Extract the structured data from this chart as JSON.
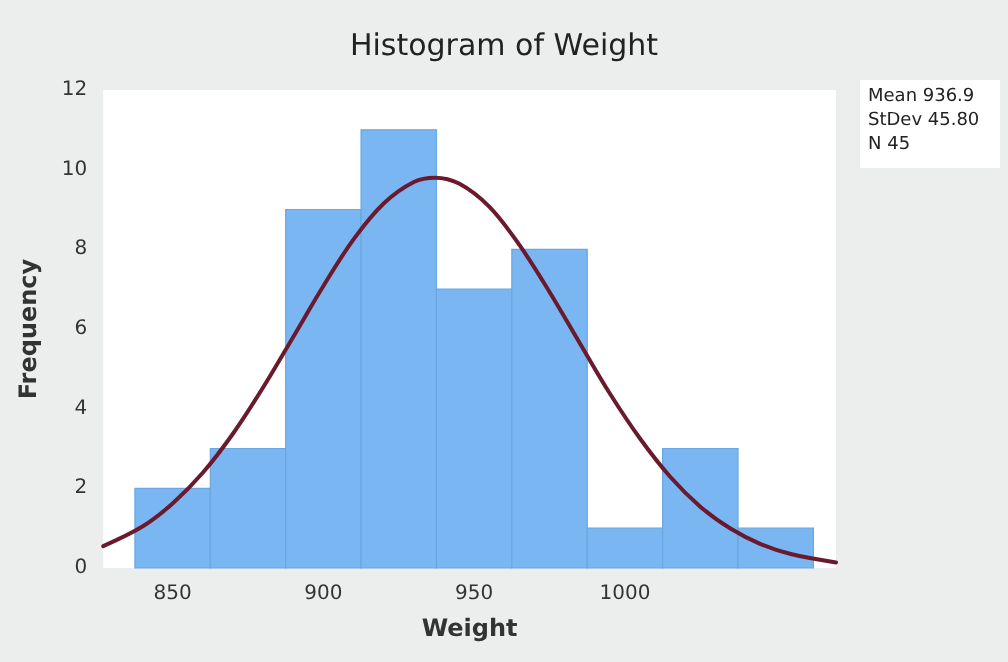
{
  "chart_data": {
    "type": "histogram",
    "title": "Histogram of Weight",
    "xlabel": "Weight",
    "ylabel": "Frequency",
    "bins": [
      837.5,
      862.5,
      887.5,
      912.5,
      937.5,
      962.5,
      987.5,
      1012.5,
      1037.5,
      1062.5
    ],
    "values": [
      2,
      3,
      9,
      11,
      7,
      8,
      1,
      3,
      1
    ],
    "color": "#7ab6f2",
    "series": [
      {
        "type": "line",
        "color": "#6b1a2e",
        "x": [
          827,
          840,
          850,
          860,
          870,
          880,
          890,
          900,
          910,
          920,
          930,
          937,
          945,
          955,
          965,
          975,
          985,
          995,
          1005,
          1015,
          1025,
          1035,
          1045,
          1055,
          1070
        ],
        "values": [
          0.55,
          1.04,
          1.62,
          2.39,
          3.37,
          4.53,
          5.8,
          7.08,
          8.25,
          9.15,
          9.69,
          9.8,
          9.65,
          9.07,
          8.11,
          6.93,
          5.65,
          4.38,
          3.25,
          2.29,
          1.54,
          0.99,
          0.6,
          0.35,
          0.14
        ]
      }
    ],
    "annotations": [
      "Mean 936.9",
      "StDev 45.80",
      "N 45"
    ],
    "xlim": [
      827,
      1070
    ],
    "xticks": [
      850,
      900,
      950,
      1000
    ],
    "ylim": [
      0,
      12
    ],
    "yticks": [
      0,
      2,
      4,
      6,
      8,
      10,
      12
    ]
  }
}
